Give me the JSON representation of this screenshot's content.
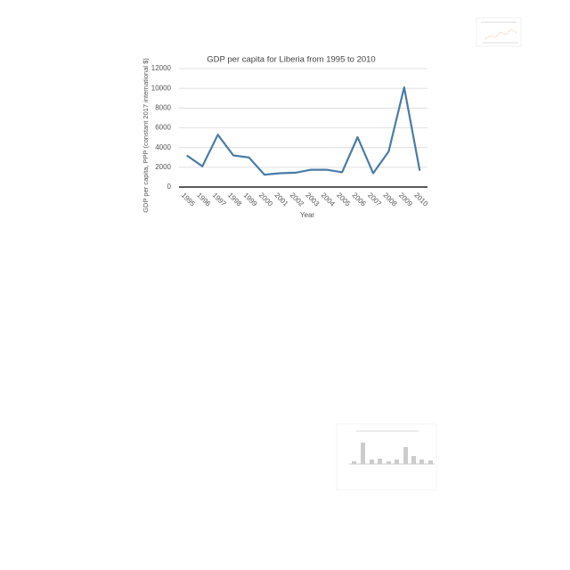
{
  "chart_data": {
    "type": "line",
    "title": "GDP per capita for Liberia from 1995 to 2010",
    "x_label": "Year",
    "y_label": "GDP per capita, PPP (constant 2017 international $)",
    "categories": [
      "1995",
      "1996",
      "1997",
      "1998",
      "1999",
      "2000",
      "2001",
      "2002",
      "2003",
      "2004",
      "2005",
      "2006",
      "2007",
      "2008",
      "2009",
      "2010"
    ],
    "values": [
      3200,
      2100,
      5300,
      3200,
      3000,
      1250,
      1400,
      1450,
      1750,
      1750,
      1500,
      5050,
      1400,
      3600,
      10100,
      1650
    ],
    "color": "#4a7ba6",
    "ylim": [
      0,
      12000
    ],
    "yticks": [
      0,
      2000,
      4000,
      6000,
      8000,
      10000,
      12000
    ],
    "grid": true
  }
}
